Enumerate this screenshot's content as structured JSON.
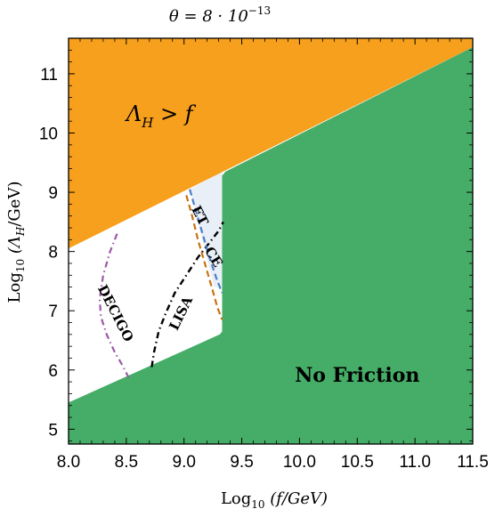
{
  "chart_data": {
    "type": "area",
    "title": "θ = 8 · 10",
    "title_exponent": "−13",
    "xlabel": "Log",
    "xlabel_sub": "10",
    "xlabel_rest": " (f/GeV)",
    "ylabel": "Log",
    "ylabel_sub": "10",
    "ylabel_rest": " (Λ",
    "ylabel_sub2": "H",
    "ylabel_end": "/GeV)",
    "xlim": [
      8.0,
      11.5
    ],
    "ylim": [
      4.75,
      11.6
    ],
    "xticks": [
      "8.0",
      "8.5",
      "9.0",
      "9.5",
      "10.0",
      "10.5",
      "11.0",
      "11.5"
    ],
    "yticks": [
      "5",
      "6",
      "7",
      "8",
      "9",
      "10",
      "11"
    ],
    "colors": {
      "upper_region": "#f7a01d",
      "lower_region": "#45ad68",
      "detector_band": "#e9eff7",
      "decigo": "#9b59a6",
      "lisa": "#000000",
      "et": "#4a7ec4",
      "ce": "#c8720f"
    },
    "regions": [
      {
        "name": "upper",
        "label": "Λ",
        "label_sub": "H",
        "label_rest": " > f",
        "polygon": [
          [
            8.0,
            11.6
          ],
          [
            11.5,
            11.6
          ],
          [
            11.5,
            11.45
          ],
          [
            8.0,
            8.05
          ]
        ]
      },
      {
        "name": "lower",
        "label": "No Friction",
        "polygon": [
          [
            8.0,
            5.45
          ],
          [
            9.31,
            6.6
          ],
          [
            9.33,
            6.65
          ],
          [
            9.33,
            9.28
          ],
          [
            9.36,
            9.35
          ],
          [
            11.5,
            11.45
          ],
          [
            11.5,
            4.75
          ],
          [
            8.0,
            4.75
          ]
        ]
      }
    ],
    "detector_band": [
      [
        9.05,
        9.05
      ],
      [
        9.33,
        9.35
      ],
      [
        9.33,
        7.4
      ],
      [
        9.26,
        7.4
      ]
    ],
    "series": [
      {
        "name": "DECIGO",
        "style": "dash-dot",
        "x": [
          8.42,
          8.36,
          8.3,
          8.27,
          8.28,
          8.33,
          8.4,
          8.46,
          8.5,
          8.52
        ],
        "y": [
          8.3,
          8.0,
          7.6,
          7.2,
          6.9,
          6.6,
          6.3,
          6.1,
          5.95,
          5.87
        ]
      },
      {
        "name": "LISA",
        "style": "dash-dot",
        "x": [
          8.72,
          8.74,
          8.78,
          8.84,
          8.92,
          9.02,
          9.12,
          9.22,
          9.3,
          9.34
        ],
        "y": [
          6.05,
          6.3,
          6.65,
          6.95,
          7.3,
          7.6,
          7.9,
          8.15,
          8.35,
          8.5
        ]
      },
      {
        "name": "ET",
        "style": "dashed",
        "x": [
          9.05,
          9.1,
          9.16,
          9.22,
          9.28,
          9.33
        ],
        "y": [
          9.05,
          8.7,
          8.3,
          7.9,
          7.55,
          7.3
        ]
      },
      {
        "name": "CE",
        "style": "dashed",
        "x": [
          9.02,
          9.07,
          9.12,
          9.18,
          9.24,
          9.29,
          9.33
        ],
        "y": [
          8.95,
          8.6,
          8.2,
          7.8,
          7.4,
          7.05,
          6.85
        ]
      }
    ]
  }
}
